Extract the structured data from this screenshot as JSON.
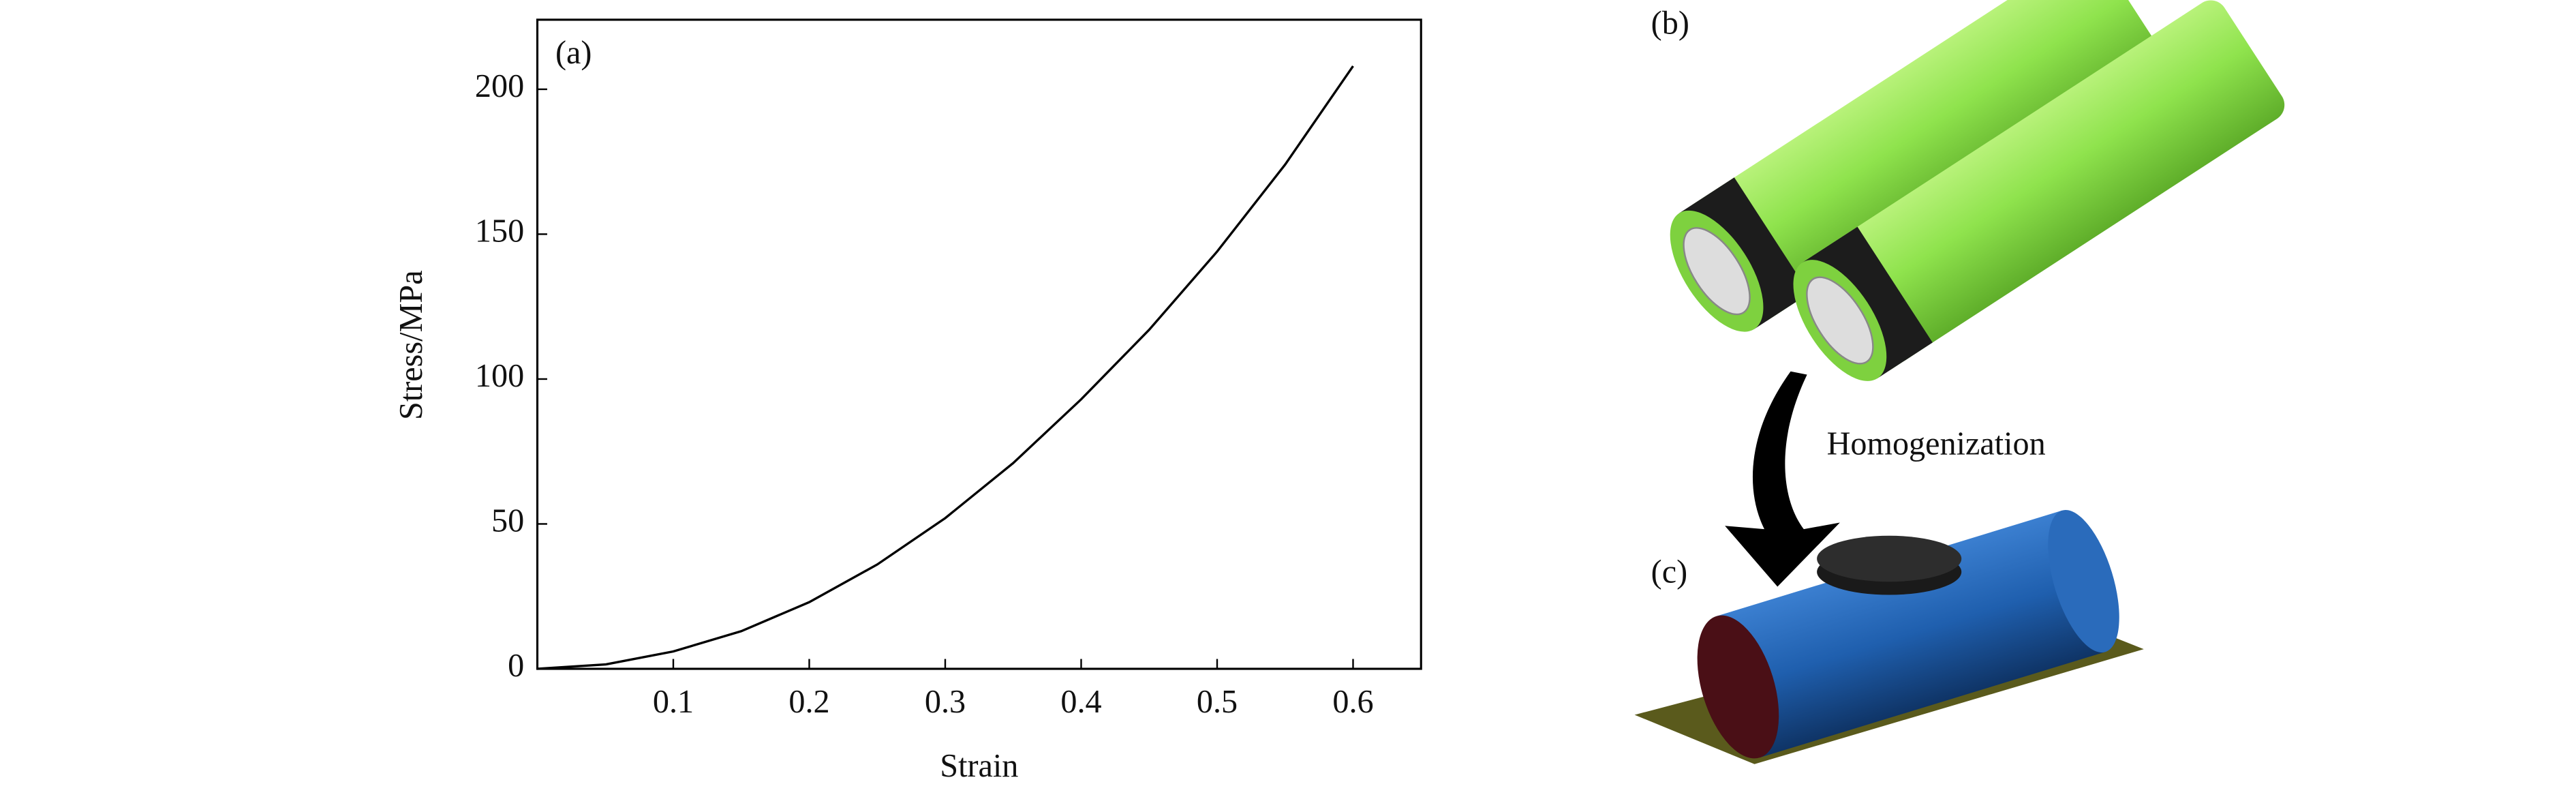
{
  "chart_data": {
    "type": "line",
    "panel_label": "(a)",
    "x_label": "Strain",
    "y_label": "Stress/MPa",
    "x": [
      0,
      0.05,
      0.1,
      0.15,
      0.2,
      0.25,
      0.3,
      0.35,
      0.4,
      0.45,
      0.5,
      0.55,
      0.6
    ],
    "series": [
      {
        "color": "#000000",
        "values": [
          0,
          1.5,
          6,
          13,
          23,
          36,
          52,
          71,
          93,
          117,
          144,
          174,
          208
        ]
      }
    ],
    "xlim": [
      0,
      0.65
    ],
    "xticks": [
      0.1,
      0.2,
      0.3,
      0.4,
      0.5,
      0.6
    ],
    "ylim": [
      0,
      224
    ],
    "yticks": [
      0,
      50,
      100,
      150,
      200
    ],
    "grid": false
  },
  "panels": {
    "battery_label": "(b)",
    "model_label": "(c)",
    "arrow_label": "Homogenization"
  }
}
